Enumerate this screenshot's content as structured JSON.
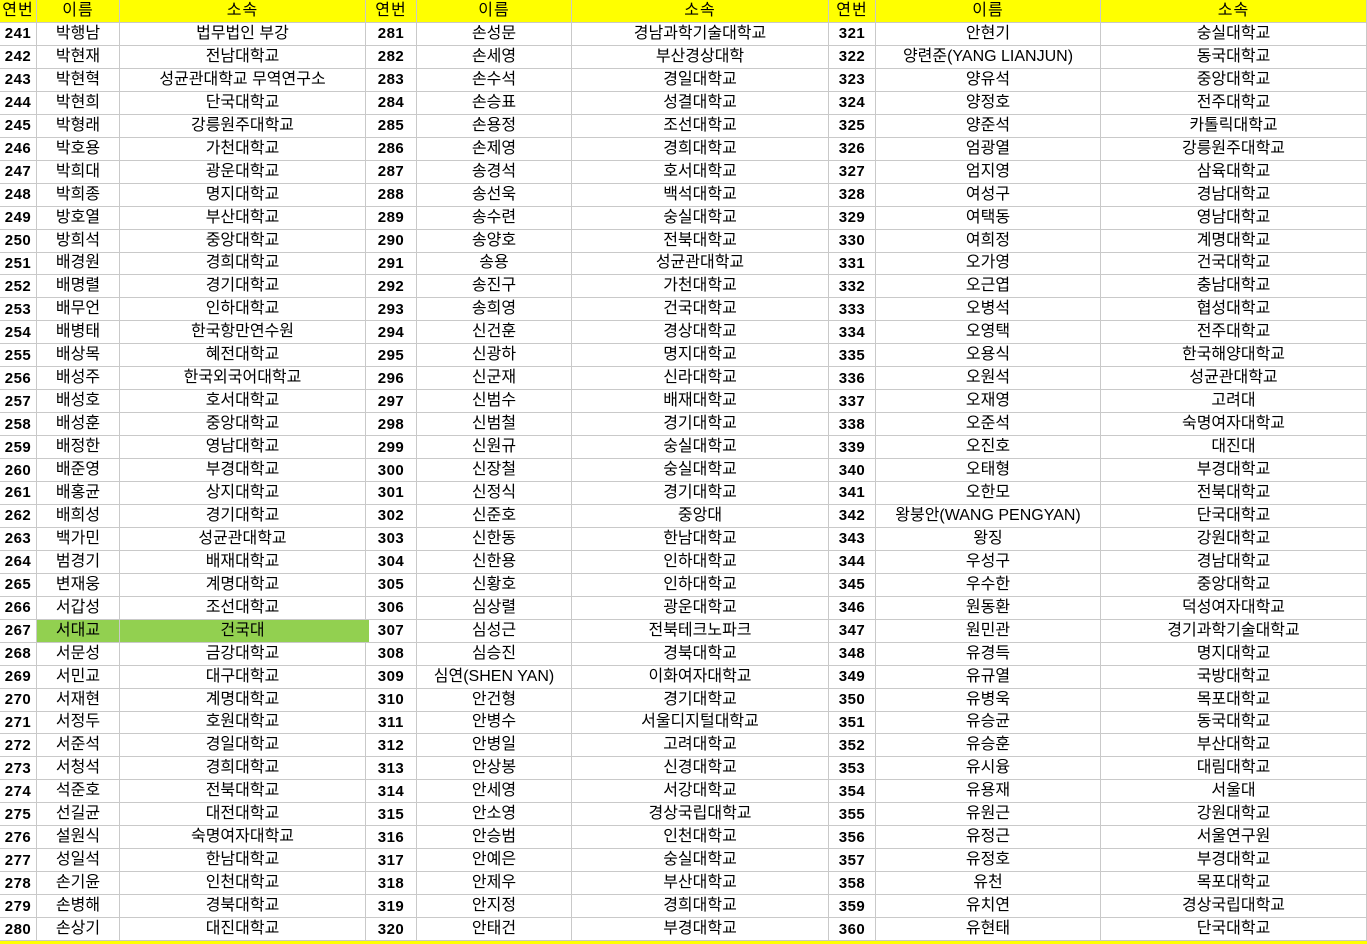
{
  "meta": {
    "columns": [
      "연번",
      "이름",
      "소속"
    ]
  },
  "colors": {
    "header_bg": "#FFFF00",
    "highlight_bg": "#92D050",
    "gridline": "#C9C9C9",
    "text": "#000000"
  },
  "highlight": {
    "row_no": "267"
  },
  "groups": [
    {
      "rows": [
        [
          "241",
          "박행남",
          "법무법인 부강"
        ],
        [
          "242",
          "박현재",
          "전남대학교"
        ],
        [
          "243",
          "박현혁",
          "성균관대학교 무역연구소"
        ],
        [
          "244",
          "박현희",
          "단국대학교"
        ],
        [
          "245",
          "박형래",
          "강릉원주대학교"
        ],
        [
          "246",
          "박호용",
          "가천대학교"
        ],
        [
          "247",
          "박희대",
          "광운대학교"
        ],
        [
          "248",
          "박희종",
          "명지대학교"
        ],
        [
          "249",
          "방호열",
          "부산대학교"
        ],
        [
          "250",
          "방희석",
          "중앙대학교"
        ],
        [
          "251",
          "배경원",
          "경희대학교"
        ],
        [
          "252",
          "배명렬",
          "경기대학교"
        ],
        [
          "253",
          "배무언",
          "인하대학교"
        ],
        [
          "254",
          "배병태",
          "한국항만연수원"
        ],
        [
          "255",
          "배상목",
          "혜전대학교"
        ],
        [
          "256",
          "배성주",
          "한국외국어대학교"
        ],
        [
          "257",
          "배성호",
          "호서대학교"
        ],
        [
          "258",
          "배성훈",
          "중앙대학교"
        ],
        [
          "259",
          "배정한",
          "영남대학교"
        ],
        [
          "260",
          "배준영",
          "부경대학교"
        ],
        [
          "261",
          "배홍균",
          "상지대학교"
        ],
        [
          "262",
          "배희성",
          "경기대학교"
        ],
        [
          "263",
          "백가민",
          "성균관대학교"
        ],
        [
          "264",
          "범경기",
          "배재대학교"
        ],
        [
          "265",
          "변재웅",
          "계명대학교"
        ],
        [
          "266",
          "서갑성",
          "조선대학교"
        ],
        [
          "267",
          "서대교",
          "건국대"
        ],
        [
          "268",
          "서문성",
          "금강대학교"
        ],
        [
          "269",
          "서민교",
          "대구대학교"
        ],
        [
          "270",
          "서재현",
          "계명대학교"
        ],
        [
          "271",
          "서정두",
          "호원대학교"
        ],
        [
          "272",
          "서준석",
          "경일대학교"
        ],
        [
          "273",
          "서청석",
          "경희대학교"
        ],
        [
          "274",
          "석준호",
          "전북대학교"
        ],
        [
          "275",
          "선길균",
          "대전대학교"
        ],
        [
          "276",
          "설원식",
          "숙명여자대학교"
        ],
        [
          "277",
          "성일석",
          "한남대학교"
        ],
        [
          "278",
          "손기윤",
          "인천대학교"
        ],
        [
          "279",
          "손병해",
          "경북대학교"
        ],
        [
          "280",
          "손상기",
          "대진대학교"
        ]
      ]
    },
    {
      "rows": [
        [
          "281",
          "손성문",
          "경남과학기술대학교"
        ],
        [
          "282",
          "손세영",
          "부산경상대학"
        ],
        [
          "283",
          "손수석",
          "경일대학교"
        ],
        [
          "284",
          "손승표",
          "성결대학교"
        ],
        [
          "285",
          "손용정",
          "조선대학교"
        ],
        [
          "286",
          "손제영",
          "경희대학교"
        ],
        [
          "287",
          "송경석",
          "호서대학교"
        ],
        [
          "288",
          "송선욱",
          "백석대학교"
        ],
        [
          "289",
          "송수련",
          "숭실대학교"
        ],
        [
          "290",
          "송양호",
          "전북대학교"
        ],
        [
          "291",
          "송용",
          "성균관대학교"
        ],
        [
          "292",
          "송진구",
          "가천대학교"
        ],
        [
          "293",
          "송희영",
          "건국대학교"
        ],
        [
          "294",
          "신건훈",
          "경상대학교"
        ],
        [
          "295",
          "신광하",
          "명지대학교"
        ],
        [
          "296",
          "신군재",
          "신라대학교"
        ],
        [
          "297",
          "신범수",
          "배재대학교"
        ],
        [
          "298",
          "신범철",
          "경기대학교"
        ],
        [
          "299",
          "신원규",
          "숭실대학교"
        ],
        [
          "300",
          "신장철",
          "숭실대학교"
        ],
        [
          "301",
          "신정식",
          "경기대학교"
        ],
        [
          "302",
          "신준호",
          "중앙대"
        ],
        [
          "303",
          "신한동",
          "한남대학교"
        ],
        [
          "304",
          "신한용",
          "인하대학교"
        ],
        [
          "305",
          "신황호",
          "인하대학교"
        ],
        [
          "306",
          "심상렬",
          "광운대학교"
        ],
        [
          "307",
          "심성근",
          "전북테크노파크"
        ],
        [
          "308",
          "심승진",
          "경북대학교"
        ],
        [
          "309",
          "심연(SHEN YAN)",
          "이화여자대학교"
        ],
        [
          "310",
          "안건형",
          "경기대학교"
        ],
        [
          "311",
          "안병수",
          "서울디지털대학교"
        ],
        [
          "312",
          "안병일",
          "고려대학교"
        ],
        [
          "313",
          "안상봉",
          "신경대학교"
        ],
        [
          "314",
          "안세영",
          "서강대학교"
        ],
        [
          "315",
          "안소영",
          "경상국립대학교"
        ],
        [
          "316",
          "안승범",
          "인천대학교"
        ],
        [
          "317",
          "안예은",
          "숭실대학교"
        ],
        [
          "318",
          "안제우",
          "부산대학교"
        ],
        [
          "319",
          "안지정",
          "경희대학교"
        ],
        [
          "320",
          "안태건",
          "부경대학교"
        ]
      ]
    },
    {
      "rows": [
        [
          "321",
          "안현기",
          "숭실대학교"
        ],
        [
          "322",
          "양련준(YANG LIANJUN)",
          "동국대학교"
        ],
        [
          "323",
          "양유석",
          "중앙대학교"
        ],
        [
          "324",
          "양정호",
          "전주대학교"
        ],
        [
          "325",
          "양준석",
          "카톨릭대학교"
        ],
        [
          "326",
          "엄광열",
          "강릉원주대학교"
        ],
        [
          "327",
          "엄지영",
          "삼육대학교"
        ],
        [
          "328",
          "여성구",
          "경남대학교"
        ],
        [
          "329",
          "여택동",
          "영남대학교"
        ],
        [
          "330",
          "여희정",
          "계명대학교"
        ],
        [
          "331",
          "오가영",
          "건국대학교"
        ],
        [
          "332",
          "오근엽",
          "충남대학교"
        ],
        [
          "333",
          "오병석",
          "협성대학교"
        ],
        [
          "334",
          "오영택",
          "전주대학교"
        ],
        [
          "335",
          "오용식",
          "한국해양대학교"
        ],
        [
          "336",
          "오원석",
          "성균관대학교"
        ],
        [
          "337",
          "오재영",
          "고려대"
        ],
        [
          "338",
          "오준석",
          "숙명여자대학교"
        ],
        [
          "339",
          "오진호",
          "대진대"
        ],
        [
          "340",
          "오태형",
          "부경대학교"
        ],
        [
          "341",
          "오한모",
          "전북대학교"
        ],
        [
          "342",
          "왕붕안(WANG PENGYAN)",
          "단국대학교"
        ],
        [
          "343",
          "왕징",
          "강원대학교"
        ],
        [
          "344",
          "우성구",
          "경남대학교"
        ],
        [
          "345",
          "우수한",
          "중앙대학교"
        ],
        [
          "346",
          "원동환",
          "덕성여자대학교"
        ],
        [
          "347",
          "원민관",
          "경기과학기술대학교"
        ],
        [
          "348",
          "유경득",
          "명지대학교"
        ],
        [
          "349",
          "유규열",
          "국방대학교"
        ],
        [
          "350",
          "유병욱",
          "목포대학교"
        ],
        [
          "351",
          "유승균",
          "동국대학교"
        ],
        [
          "352",
          "유승훈",
          "부산대학교"
        ],
        [
          "353",
          "유시융",
          "대림대학교"
        ],
        [
          "354",
          "유용재",
          "서울대"
        ],
        [
          "355",
          "유원근",
          "강원대학교"
        ],
        [
          "356",
          "유정근",
          "서울연구원"
        ],
        [
          "357",
          "유정호",
          "부경대학교"
        ],
        [
          "358",
          "유천",
          "목포대학교"
        ],
        [
          "359",
          "유치연",
          "경상국립대학교"
        ],
        [
          "360",
          "유현태",
          "단국대학교"
        ]
      ]
    }
  ]
}
